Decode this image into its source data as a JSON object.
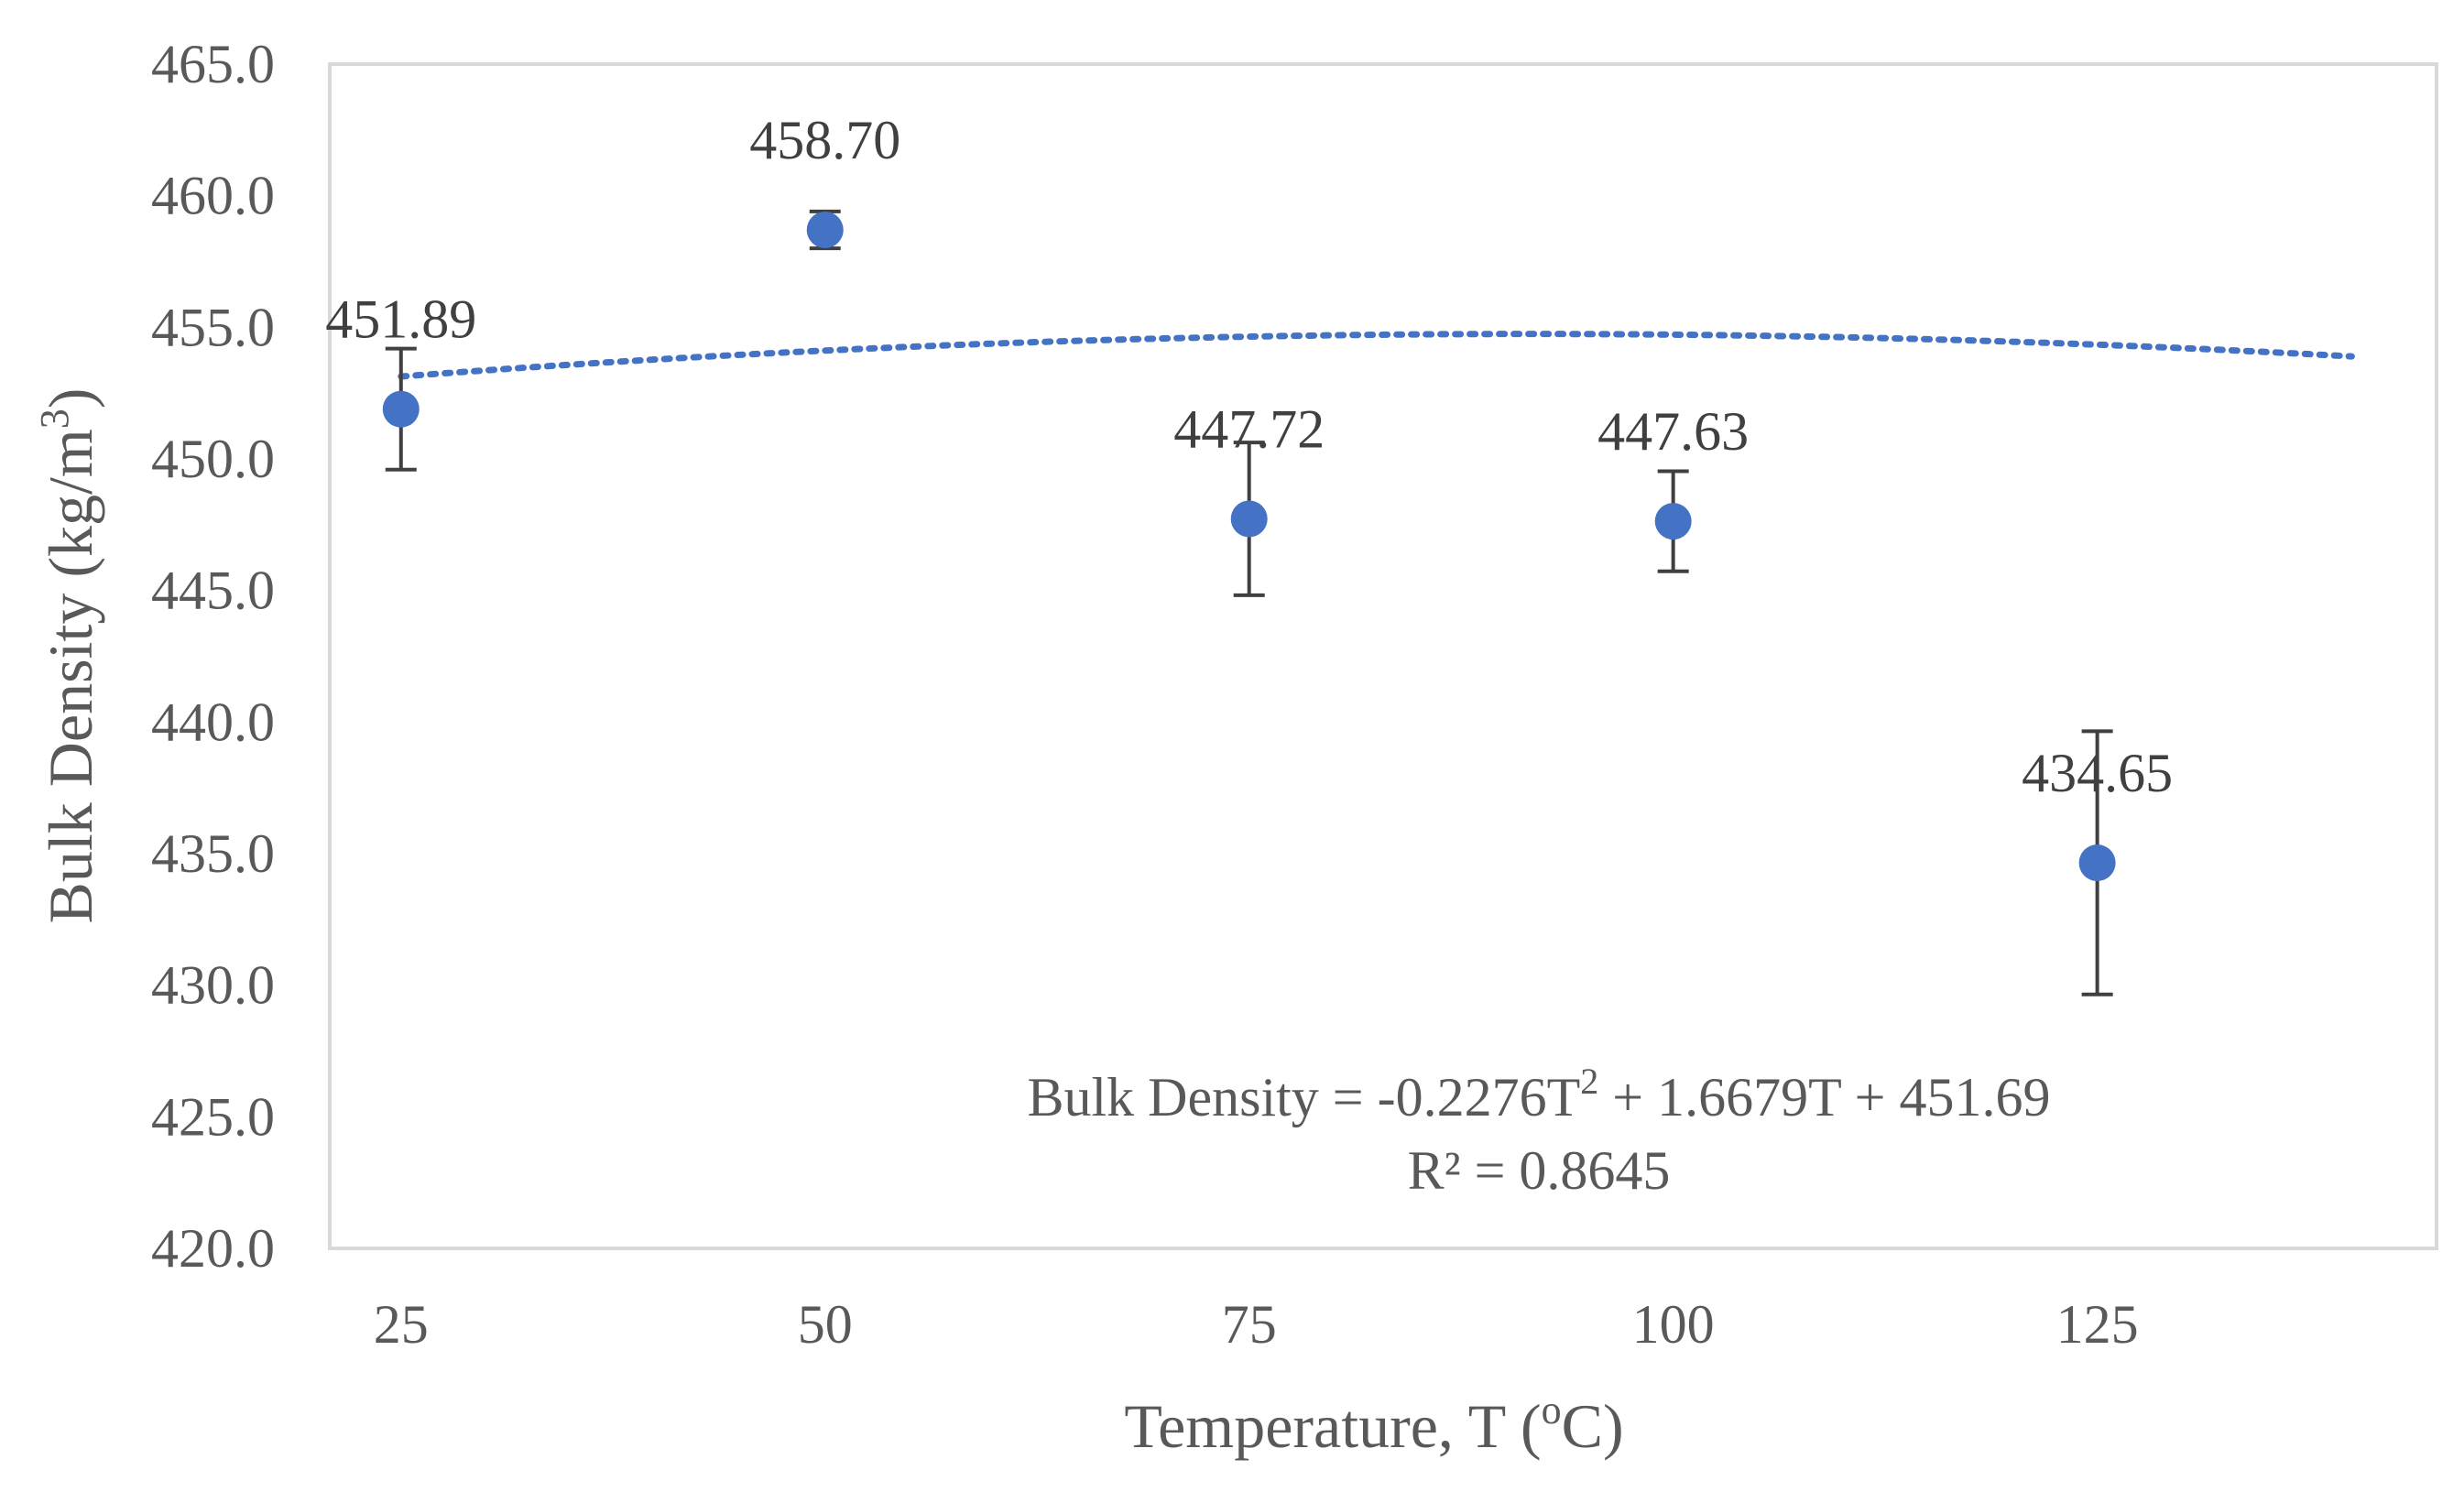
{
  "chart_data": {
    "type": "scatter",
    "title": "",
    "xlabel_main": "Temperature, T (",
    "xlabel_sup": "o",
    "xlabel_end": "C)",
    "ylabel_main": "Bulk Density (kg/m",
    "ylabel_sup": "3",
    "ylabel_end": ")",
    "x_ticks": [
      "25",
      "50",
      "75",
      "100",
      "125"
    ],
    "y_ticks": [
      "420.0",
      "425.0",
      "430.0",
      "435.0",
      "440.0",
      "445.0",
      "450.0",
      "455.0",
      "460.0",
      "465.0"
    ],
    "ylim": [
      420,
      465
    ],
    "xlim": [
      20.8,
      145
    ],
    "series": [
      {
        "name": "Bulk Density",
        "x": [
          25,
          50,
          75,
          100,
          125
        ],
        "y": [
          451.89,
          458.7,
          447.72,
          447.63,
          434.65
        ],
        "labels": [
          "451.89",
          "458.70",
          "447.72",
          "447.63",
          "434.65"
        ],
        "err_plus": [
          2.3,
          0.7,
          2.9,
          1.9,
          5.0
        ],
        "err_minus": [
          2.3,
          0.7,
          2.9,
          1.9,
          5.0
        ],
        "color": "#4472C4"
      }
    ],
    "trendline": {
      "type": "polynomial",
      "coefficients": {
        "a": -0.2276,
        "b": 1.6679,
        "c": 451.69
      },
      "x_range": [
        25,
        140
      ],
      "color": "#4472C4",
      "equation_main": "Bulk Density = -0.2276T",
      "equation_sup": "2",
      "equation_end": " + 1.6679T + 451.69",
      "r2_text": "R² = 0.8645"
    },
    "grid": false,
    "legend": "none"
  }
}
